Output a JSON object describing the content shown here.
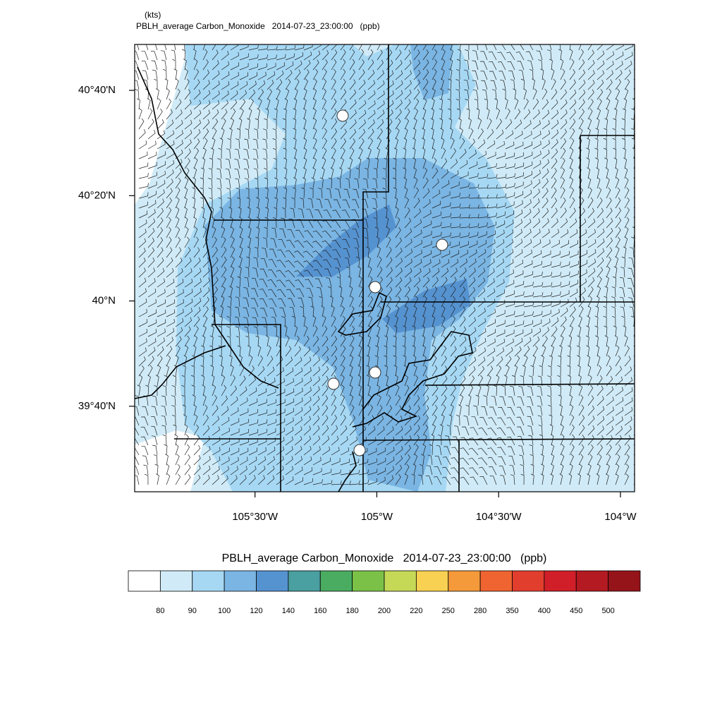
{
  "chart_data": {
    "type": "contour-map",
    "units_label": "(kts)",
    "title": "PBLH_average Carbon_Monoxide   2014-07-23_23:00:00   (ppb)",
    "xlim": [
      -105.994,
      -103.942
    ],
    "ylim": [
      39.396,
      40.812
    ],
    "xticks": [
      {
        "value": -105.5,
        "label": "105°30'W"
      },
      {
        "value": -105,
        "label": "105°W"
      },
      {
        "value": -104.5,
        "label": "104°30'W"
      },
      {
        "value": -104,
        "label": "104°W"
      }
    ],
    "yticks": [
      {
        "value": 40.6667,
        "label": "40°40'N"
      },
      {
        "value": 40.3333,
        "label": "40°20'N"
      },
      {
        "value": 40,
        "label": "40°N"
      },
      {
        "value": 39.6667,
        "label": "39°40'N"
      }
    ],
    "colorbar": {
      "colors": [
        "#ffffff",
        "#d0ebf7",
        "#a6d8f4",
        "#7ab5e3",
        "#5592d0",
        "#4a9fa0",
        "#4aac60",
        "#7bc147",
        "#c6d957",
        "#f8d052",
        "#f49a3a",
        "#ef6430",
        "#e13e2e",
        "#d01f28",
        "#b31a21",
        "#951419"
      ],
      "levels": [
        80,
        90,
        100,
        120,
        140,
        160,
        180,
        200,
        220,
        250,
        280,
        350,
        400,
        450,
        500
      ]
    }
  }
}
